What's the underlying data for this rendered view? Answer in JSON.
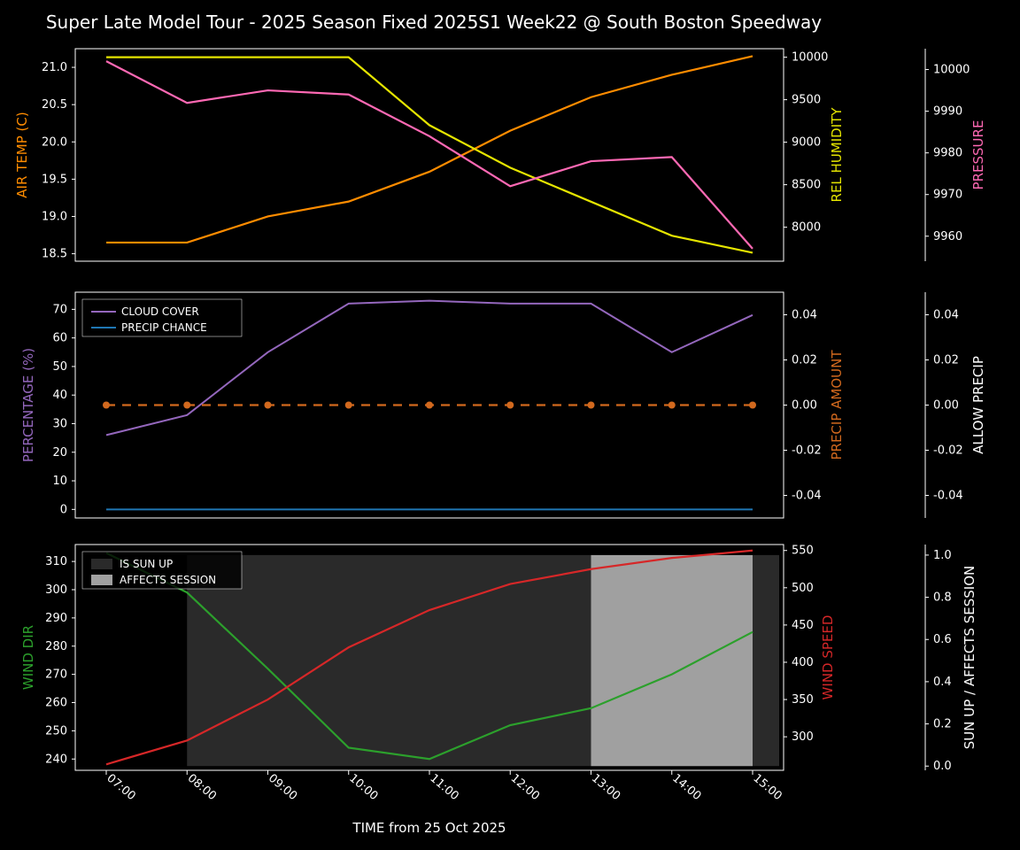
{
  "title": "Super Late Model Tour - 2025 Season Fixed 2025S1 Week22 @ South Boston Speedway",
  "xlabel": "TIME from 25 Oct 2025",
  "time_labels": [
    "07:00",
    "08:00",
    "09:00",
    "10:00",
    "11:00",
    "12:00",
    "13:00",
    "14:00",
    "15:00"
  ],
  "colors": {
    "bg": "#000000",
    "spine": "#ffffff",
    "orange": "#ff8c00",
    "yellow": "#e5e500",
    "pink": "#ff69b4",
    "violet": "#d62fd6",
    "mediumpurple": "#9467bd",
    "steelblue": "#1f77b4",
    "chocolate": "#d2691e",
    "green": "#2ca02c",
    "red": "#d62728",
    "darkgrey": "#2a2a2a",
    "lightgrey": "#a0a0a0"
  },
  "panel1": {
    "air_temp": {
      "label": "AIR TEMP (C)",
      "values": [
        18.65,
        18.65,
        19.0,
        19.2,
        19.6,
        20.15,
        20.6,
        20.9,
        21.15
      ],
      "ticks": [
        18.5,
        19.0,
        19.5,
        20.0,
        20.5,
        21.0
      ],
      "ylim": [
        18.4,
        21.25
      ],
      "color": "#ff8c00"
    },
    "rel_humidity": {
      "label": "REL HUMIDITY",
      "values": [
        10000,
        10000,
        10000,
        10000,
        9200,
        8700,
        8300,
        7900,
        7700
      ],
      "ticks": [
        8000,
        8500,
        9000,
        9500,
        10000
      ],
      "ylim": [
        7600,
        10100
      ],
      "color": "#e5e500"
    },
    "pressure": {
      "label": "PRESSURE",
      "values": [
        10002,
        9992,
        9995,
        9994,
        9984,
        9972,
        9978,
        9979,
        9957
      ],
      "ticks": [
        9960,
        9970,
        9980,
        9990,
        10000
      ],
      "ylim": [
        9954,
        10005
      ],
      "color": "#ff69b4"
    }
  },
  "panel2": {
    "percentage": {
      "label": "PERCENTAGE (%)",
      "cloud_cover": [
        26,
        33,
        55,
        72,
        73,
        72,
        72,
        55,
        68
      ],
      "precip_chance": [
        0,
        0,
        0,
        0,
        0,
        0,
        0,
        0,
        0
      ],
      "ticks": [
        0,
        10,
        20,
        30,
        40,
        50,
        60,
        70
      ],
      "ylim": [
        -3,
        76
      ],
      "color": "#9467bd",
      "legend": {
        "cloud_cover": "CLOUD COVER",
        "precip_chance": "PRECIP CHANCE"
      }
    },
    "precip_amount": {
      "label": "PRECIP AMOUNT",
      "values": [
        0,
        0,
        0,
        0,
        0,
        0,
        0,
        0,
        0
      ],
      "ticks": [
        -0.04,
        -0.02,
        0.0,
        0.02,
        0.04
      ],
      "ylim": [
        -0.05,
        0.05
      ],
      "color": "#d2691e"
    },
    "allow_precip": {
      "label": "ALLOW PRECIP",
      "ticks": [
        -0.04,
        -0.02,
        0.0,
        0.02,
        0.04
      ],
      "ylim": [
        -0.05,
        0.05
      ],
      "color": "#ffffff"
    }
  },
  "panel3": {
    "wind_dir": {
      "label": "WIND DIR",
      "values": [
        313,
        299,
        272,
        244,
        240,
        252,
        258,
        270,
        285
      ],
      "ticks": [
        240,
        250,
        260,
        270,
        280,
        290,
        300,
        310
      ],
      "ylim": [
        236,
        316
      ],
      "color": "#2ca02c"
    },
    "wind_speed": {
      "label": "WIND SPEED",
      "values": [
        263,
        295,
        350,
        420,
        470,
        505,
        525,
        540,
        550
      ],
      "ticks": [
        300,
        350,
        400,
        450,
        500,
        550
      ],
      "ylim": [
        255,
        558
      ],
      "color": "#d62728"
    },
    "sun_affects": {
      "label": "SUN UP / AFFECTS SESSION",
      "ticks": [
        0.0,
        0.2,
        0.4,
        0.6,
        0.8,
        1.0
      ],
      "ylim": [
        -0.02,
        1.05
      ],
      "color": "#ffffff",
      "legend": {
        "is_sun_up": "IS SUN UP",
        "affects_session": "AFFECTS SESSION"
      },
      "sun_up_start_idx": 1,
      "sun_up_end_idx": 9.5,
      "affects_start_idx": 6,
      "affects_end_idx": 8
    }
  }
}
